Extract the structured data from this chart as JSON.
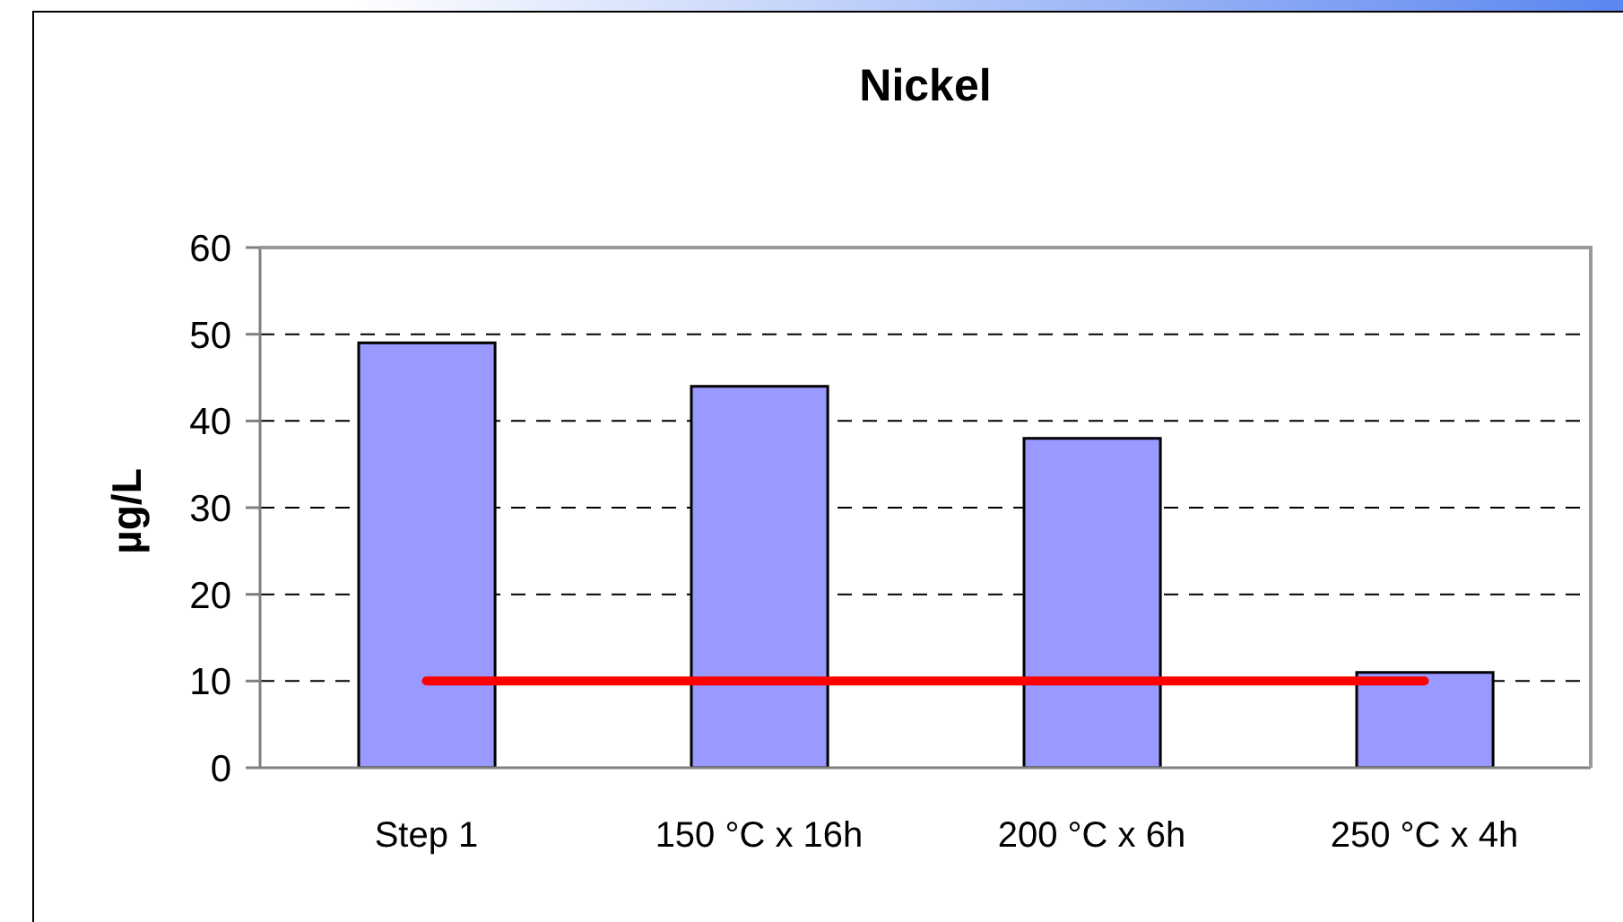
{
  "chart_data": {
    "type": "bar",
    "title": "Nickel",
    "ylabel": "µg/L",
    "categories": [
      "Step 1",
      "150 °C x 16h",
      "200 °C x 6h",
      "250 °C x 4h"
    ],
    "series": [
      {
        "values": [
          49,
          44,
          38,
          11
        ],
        "color": "#9999ff"
      },
      {
        "type": "line",
        "values": [
          10,
          10,
          10,
          10
        ],
        "color": "#ff0000"
      }
    ],
    "ylim": [
      0,
      60
    ],
    "yticks": [
      0,
      10,
      20,
      30,
      40,
      50,
      60
    ],
    "grid": "y"
  }
}
